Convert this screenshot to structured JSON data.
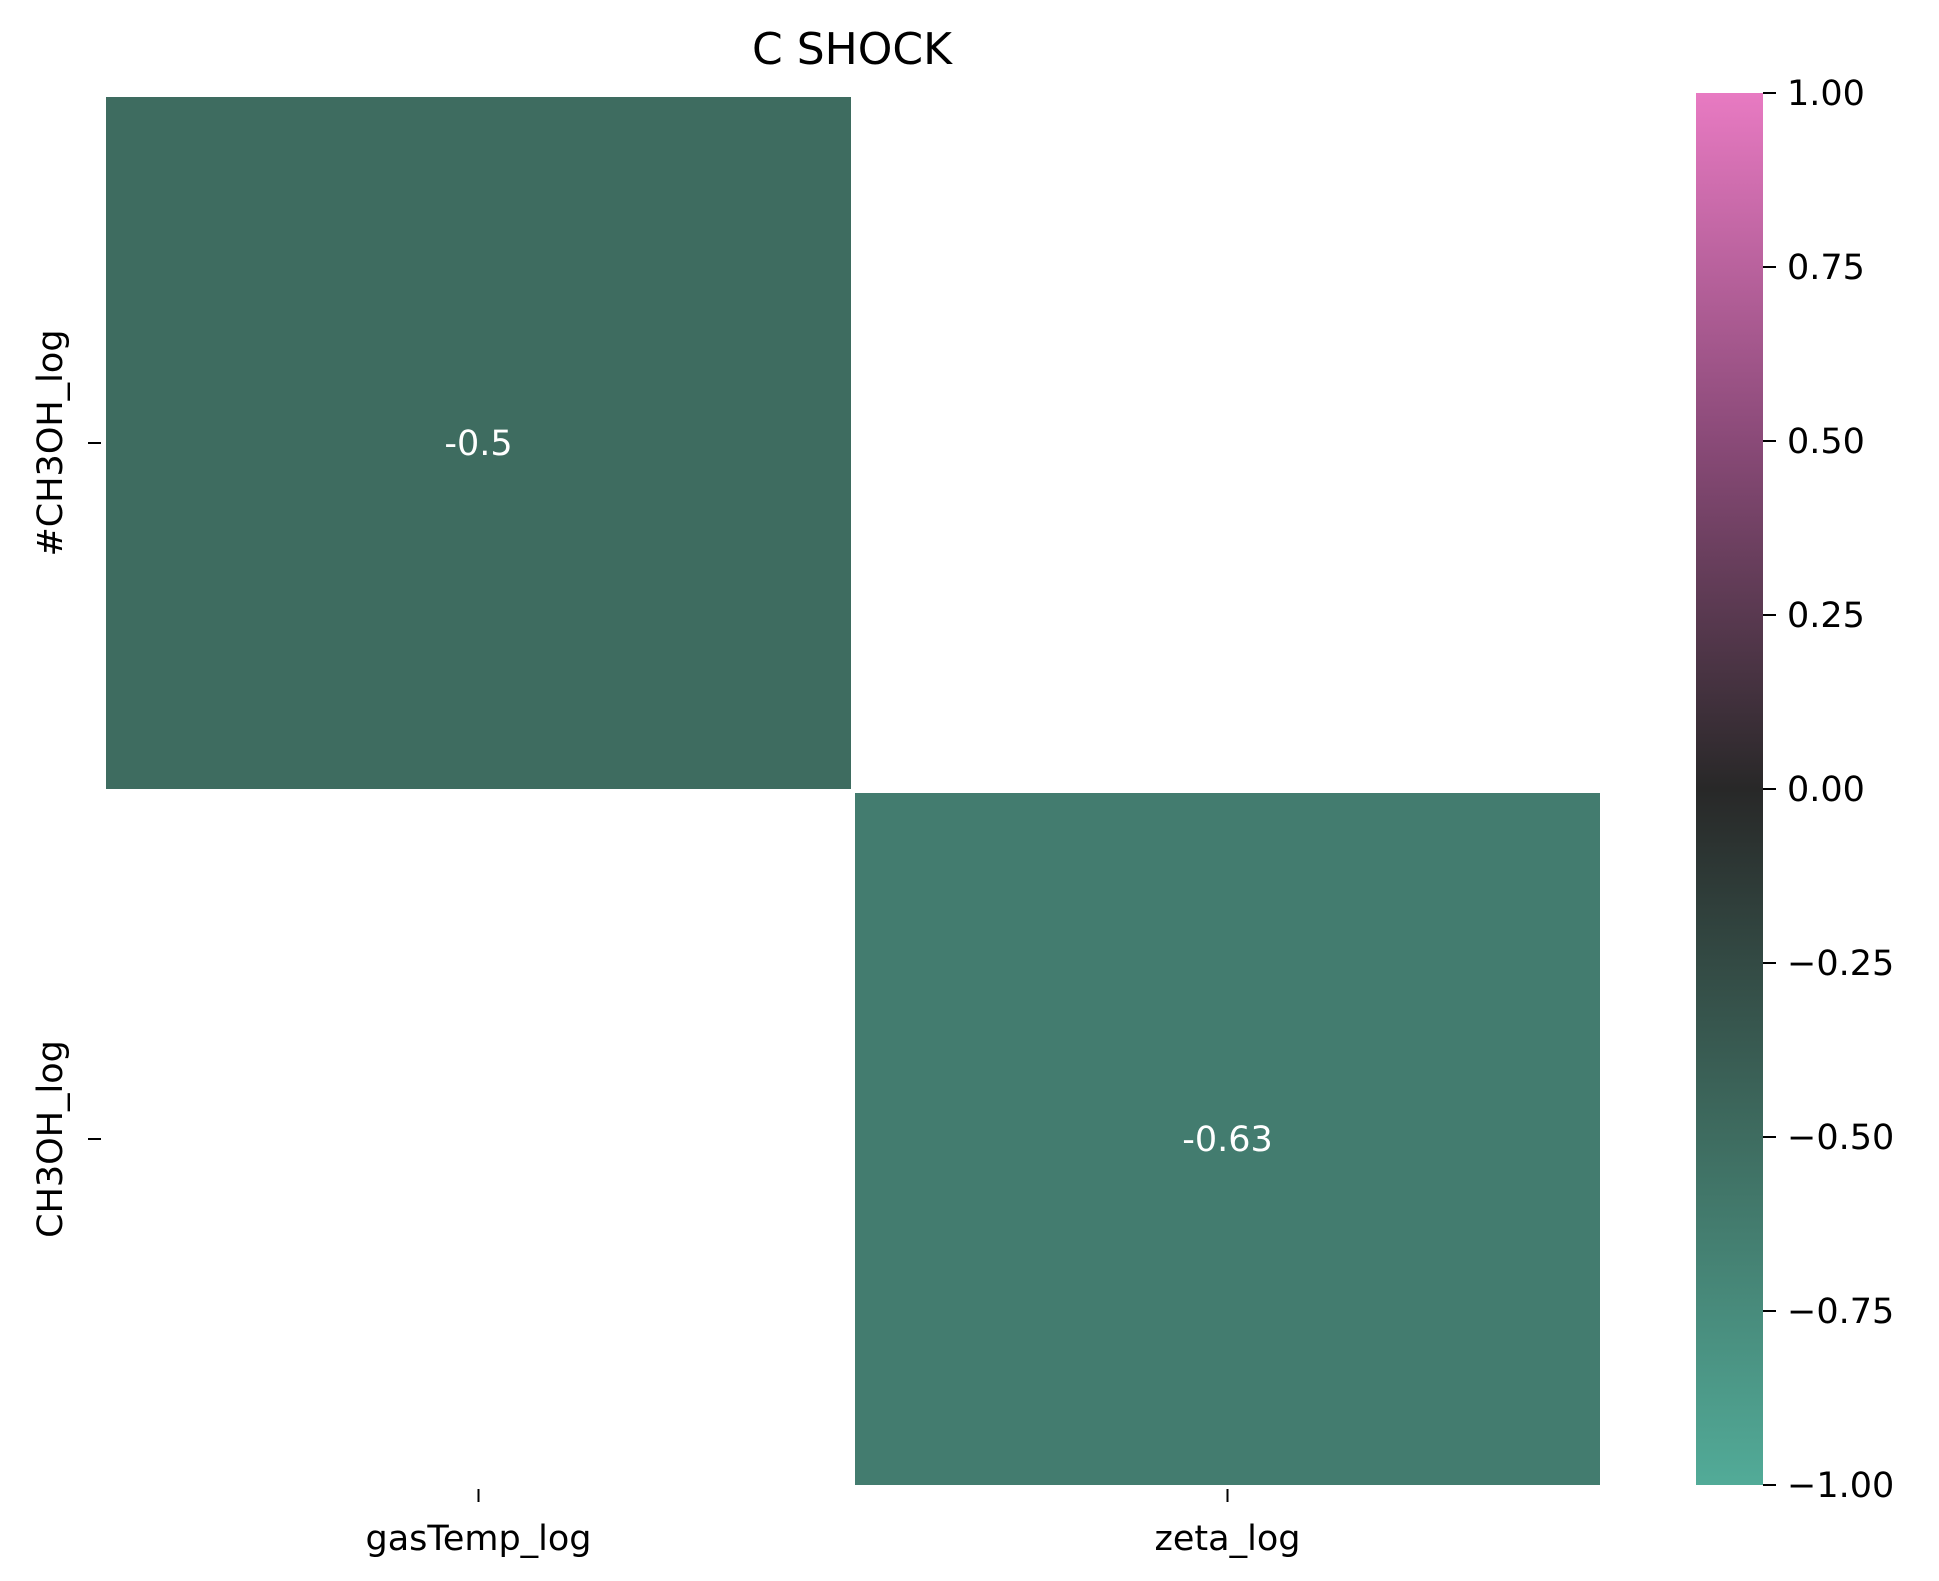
{
  "chart_data": {
    "type": "heatmap",
    "title": "C SHOCK",
    "xlabel": "",
    "ylabel": "",
    "x_categories": [
      "gasTemp_log",
      "zeta_log"
    ],
    "y_categories": [
      "#CH3OH_log",
      "CH3OH_log"
    ],
    "cells": [
      {
        "row": 0,
        "col": 0,
        "value": -0.5,
        "label": "-0.5"
      },
      {
        "row": 1,
        "col": 1,
        "value": -0.63,
        "label": "-0.63"
      }
    ],
    "colorbar": {
      "vmin": -1.0,
      "vmax": 1.0,
      "ticks": [
        1.0,
        0.75,
        0.5,
        0.25,
        0.0,
        -0.25,
        -0.5,
        -0.75,
        -1.0
      ],
      "tick_labels": [
        "1.00",
        "0.75",
        "0.50",
        "0.25",
        "0.00",
        "−0.25",
        "−0.50",
        "−0.75",
        "−1.00"
      ],
      "colormap": [
        {
          "value": -1.0,
          "color": "#52ab98"
        },
        {
          "value": -0.5,
          "color": "#3e6c60"
        },
        {
          "value": 0.0,
          "color": "#282828"
        },
        {
          "value": 0.5,
          "color": "#8a4a78"
        },
        {
          "value": 1.0,
          "color": "#e87ac2"
        }
      ]
    }
  }
}
